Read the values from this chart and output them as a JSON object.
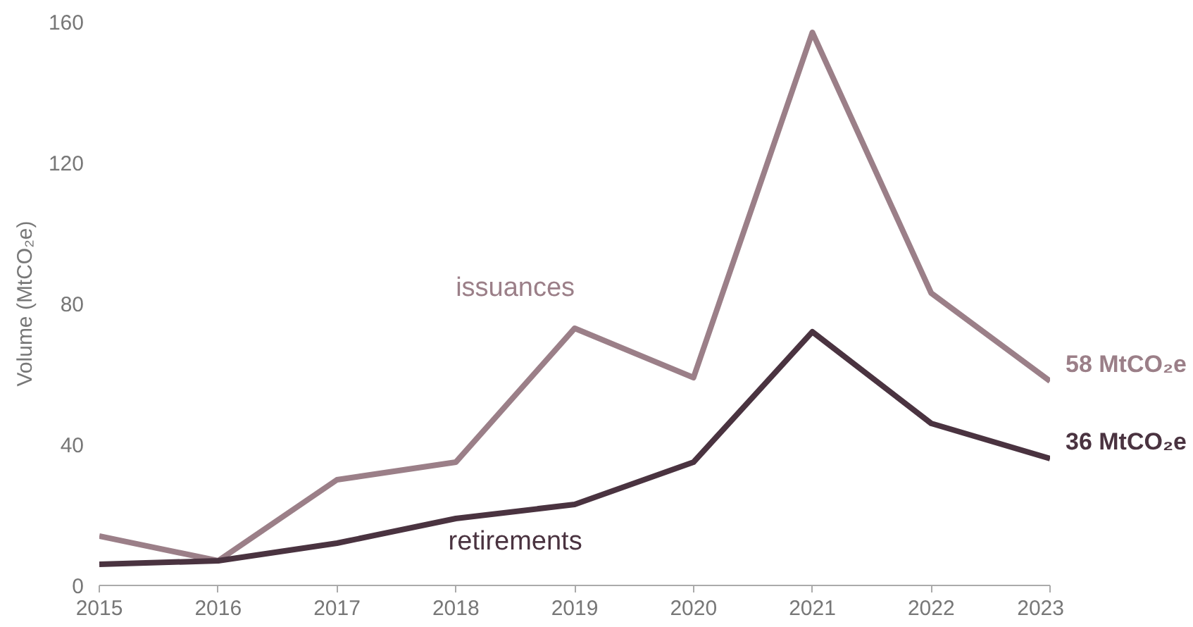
{
  "chart_data": {
    "type": "line",
    "ylabel": "Volume (MtCO₂e)",
    "x": [
      2015,
      2016,
      2017,
      2018,
      2019,
      2020,
      2021,
      2022,
      2023
    ],
    "series": [
      {
        "name": "issuances",
        "color": "#9b7f88",
        "values": [
          14,
          7,
          30,
          35,
          73,
          59,
          157,
          83,
          58
        ]
      },
      {
        "name": "retirements",
        "color": "#4a3340",
        "values": [
          6,
          7,
          12,
          19,
          23,
          35,
          72,
          46,
          36
        ]
      }
    ],
    "annotations": [
      {
        "text": "58 MtCO₂e",
        "x": 2023,
        "y": 58
      },
      {
        "text": "36 MtCO₂e",
        "x": 2023,
        "y": 36
      }
    ],
    "xlim": [
      2015,
      2023
    ],
    "xticks": [
      2015,
      2016,
      2017,
      2018,
      2019,
      2020,
      2021,
      2022,
      2023
    ],
    "ylim": [
      0,
      160
    ],
    "yticks": [
      0,
      40,
      80,
      120,
      160
    ],
    "grid": false,
    "legend": false,
    "marker": "none",
    "line_style": "solid"
  }
}
